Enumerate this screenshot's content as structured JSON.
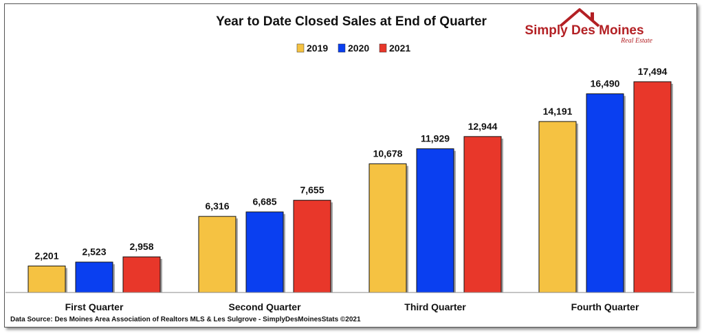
{
  "chart_data": {
    "type": "bar",
    "title": "Year to Date Closed Sales at End of Quarter",
    "categories": [
      "First Quarter",
      "Second Quarter",
      "Third Quarter",
      "Fourth Quarter"
    ],
    "series": [
      {
        "name": "2019",
        "color": "#f5c242",
        "values": [
          2201,
          6316,
          10678,
          14191
        ],
        "labels": [
          "2,201",
          "6,316",
          "10,678",
          "14,191"
        ]
      },
      {
        "name": "2020",
        "color": "#0a3ff0",
        "values": [
          2523,
          6685,
          11929,
          16490
        ],
        "labels": [
          "2,523",
          "6,685",
          "11,929",
          "16,490"
        ]
      },
      {
        "name": "2021",
        "color": "#e8372a",
        "values": [
          2958,
          7655,
          12944,
          17494
        ],
        "labels": [
          "2,958",
          "7,655",
          "12,944",
          "17,494"
        ]
      }
    ],
    "ylim": [
      0,
      17494
    ],
    "grid": false,
    "legend": "top-center",
    "xlabel": "",
    "ylabel": ""
  },
  "source_note": "Data Source: Des Moines Area Association of Realtors MLS & Les Sulgrove - SimplyDesMoinesStats ©2021",
  "logo": {
    "name": "Simply Des Moines",
    "tagline": "Real Estate",
    "color": "#b32024",
    "icon": "house-roof-icon"
  }
}
